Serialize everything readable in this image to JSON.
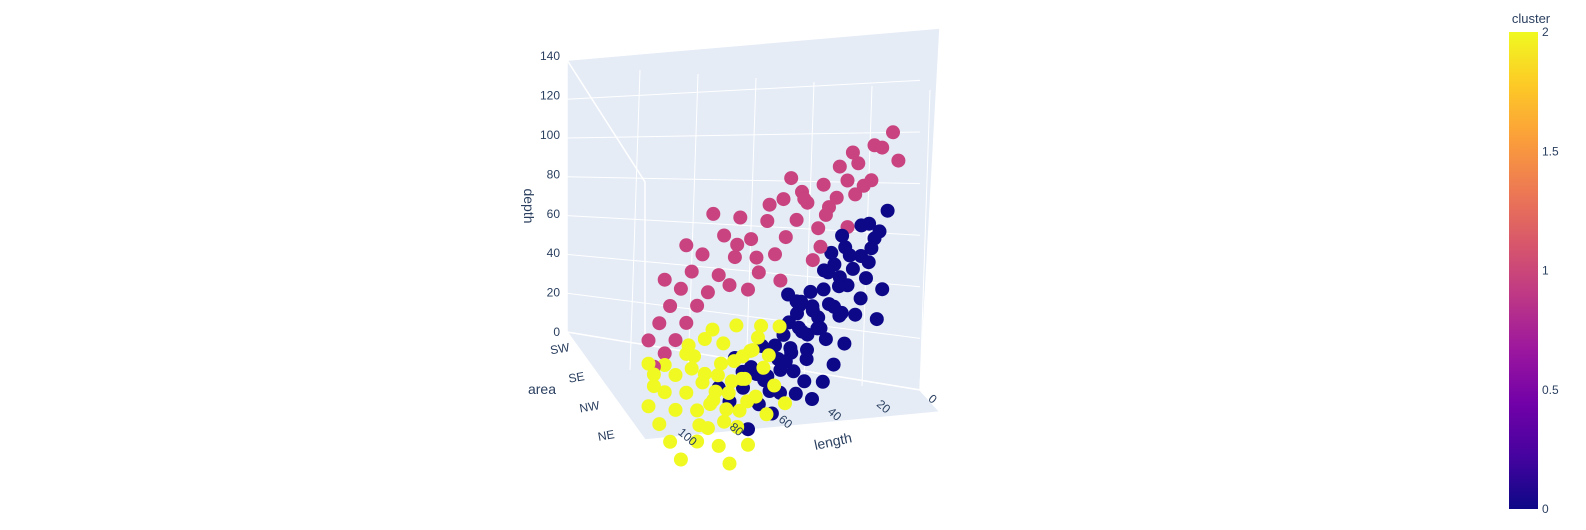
{
  "chart_data": {
    "type": "scatter3d",
    "axes": {
      "x": {
        "title": "length",
        "ticks": [
          0,
          20,
          40,
          60,
          80,
          100
        ],
        "range": [
          0,
          110
        ]
      },
      "y": {
        "title": "area",
        "categories": [
          "SW",
          "SE",
          "NW",
          "NE"
        ]
      },
      "z": {
        "title": "depth",
        "ticks": [
          0,
          20,
          40,
          60,
          80,
          100,
          120,
          140
        ],
        "range": [
          0,
          140
        ]
      }
    },
    "colorbar": {
      "title": "cluster",
      "ticks": [
        "0",
        "0.5",
        "1",
        "1.5",
        "2"
      ],
      "range": [
        0,
        2
      ],
      "colorscale": [
        "#0d0887",
        "#46039f",
        "#7201a8",
        "#9c179e",
        "#bd3786",
        "#d8576b",
        "#ed7953",
        "#fb9f3a",
        "#fdca26",
        "#f0f921"
      ]
    },
    "background_color": "#e5ecf6",
    "series": [
      {
        "cluster": 0,
        "color": "#0d0887",
        "points": [
          [
            12,
            0,
            95
          ],
          [
            15,
            0,
            85
          ],
          [
            18,
            0,
            77
          ],
          [
            20,
            0,
            62
          ],
          [
            24,
            0,
            44
          ],
          [
            28,
            0,
            30
          ],
          [
            32,
            0,
            20
          ],
          [
            36,
            0,
            12
          ],
          [
            40,
            0,
            4
          ],
          [
            14,
            0,
            55
          ],
          [
            22,
            0,
            52
          ],
          [
            30,
            0,
            60
          ],
          [
            26,
            0,
            75
          ],
          [
            34,
            0,
            68
          ],
          [
            38,
            0,
            40
          ],
          [
            42,
            0,
            25
          ],
          [
            16,
            0,
            40
          ],
          [
            44,
            0,
            55
          ],
          [
            46,
            0,
            8
          ],
          [
            48,
            0,
            32
          ],
          [
            19,
            0,
            70
          ],
          [
            29,
            0,
            46
          ],
          [
            20,
            1,
            92
          ],
          [
            25,
            1,
            84
          ],
          [
            30,
            1,
            70
          ],
          [
            35,
            1,
            60
          ],
          [
            40,
            1,
            50
          ],
          [
            45,
            1,
            40
          ],
          [
            50,
            1,
            30
          ],
          [
            55,
            1,
            20
          ],
          [
            22,
            1,
            100
          ],
          [
            28,
            1,
            78
          ],
          [
            33,
            1,
            55
          ],
          [
            38,
            1,
            44
          ],
          [
            43,
            1,
            62
          ],
          [
            48,
            1,
            52
          ],
          [
            36,
            1,
            88
          ],
          [
            52,
            1,
            70
          ],
          [
            58,
            1,
            10
          ],
          [
            32,
            1,
            96
          ],
          [
            46,
            1,
            24
          ],
          [
            28,
            2,
            110
          ],
          [
            34,
            2,
            100
          ],
          [
            38,
            2,
            92
          ],
          [
            42,
            2,
            80
          ],
          [
            46,
            2,
            70
          ],
          [
            50,
            2,
            60
          ],
          [
            54,
            2,
            50
          ],
          [
            58,
            2,
            42
          ],
          [
            62,
            2,
            32
          ],
          [
            66,
            2,
            26
          ],
          [
            70,
            2,
            14
          ],
          [
            44,
            2,
            66
          ],
          [
            40,
            2,
            72
          ],
          [
            48,
            2,
            58
          ],
          [
            36,
            2,
            85
          ],
          [
            56,
            2,
            46
          ],
          [
            64,
            2,
            38
          ],
          [
            60,
            2,
            55
          ],
          [
            52,
            2,
            76
          ],
          [
            72,
            2,
            44
          ],
          [
            45,
            3,
            100
          ],
          [
            50,
            3,
            90
          ],
          [
            55,
            3,
            80
          ],
          [
            60,
            3,
            70
          ],
          [
            65,
            3,
            62
          ],
          [
            70,
            3,
            52
          ],
          [
            75,
            3,
            46
          ],
          [
            80,
            3,
            40
          ],
          [
            58,
            3,
            76
          ],
          [
            62,
            3,
            58
          ],
          [
            68,
            3,
            66
          ],
          [
            72,
            3,
            56
          ],
          [
            66,
            3,
            50
          ],
          [
            78,
            3,
            62
          ],
          [
            84,
            3,
            48
          ],
          [
            54,
            3,
            84
          ]
        ]
      },
      {
        "cluster": 1,
        "color": "#c8437f",
        "points": [
          [
            10,
            0,
            135
          ],
          [
            14,
            0,
            128
          ],
          [
            8,
            0,
            120
          ],
          [
            18,
            0,
            112
          ],
          [
            24,
            0,
            106
          ],
          [
            20,
            1,
            140
          ],
          [
            26,
            1,
            132
          ],
          [
            30,
            1,
            124
          ],
          [
            34,
            1,
            116
          ],
          [
            38,
            1,
            108
          ],
          [
            24,
            1,
            120
          ],
          [
            30,
            1,
            100
          ],
          [
            40,
            1,
            92
          ],
          [
            46,
            1,
            118
          ],
          [
            28,
            1,
            138
          ],
          [
            36,
            2,
            142
          ],
          [
            42,
            2,
            134
          ],
          [
            48,
            2,
            126
          ],
          [
            52,
            2,
            118
          ],
          [
            56,
            2,
            110
          ],
          [
            60,
            2,
            102
          ],
          [
            46,
            2,
            96
          ],
          [
            66,
            2,
            94
          ],
          [
            70,
            2,
            86
          ],
          [
            40,
            2,
            122
          ],
          [
            54,
            2,
            140
          ],
          [
            62,
            2,
            128
          ],
          [
            74,
            2,
            110
          ],
          [
            58,
            2,
            88
          ],
          [
            44,
            2,
            112
          ],
          [
            50,
            2,
            132
          ],
          [
            60,
            3,
            140
          ],
          [
            66,
            3,
            130
          ],
          [
            72,
            3,
            122
          ],
          [
            78,
            3,
            114
          ],
          [
            84,
            3,
            106
          ],
          [
            88,
            3,
            98
          ],
          [
            92,
            3,
            92
          ],
          [
            96,
            3,
            84
          ],
          [
            100,
            3,
            76
          ],
          [
            104,
            3,
            70
          ],
          [
            108,
            3,
            64
          ],
          [
            76,
            3,
            134
          ],
          [
            82,
            3,
            126
          ],
          [
            90,
            3,
            118
          ],
          [
            94,
            3,
            110
          ],
          [
            98,
            3,
            102
          ],
          [
            102,
            3,
            94
          ],
          [
            106,
            3,
            86
          ],
          [
            86,
            3,
            138
          ],
          [
            110,
            3,
            78
          ],
          [
            80,
            3,
            100
          ],
          [
            70,
            3,
            112
          ],
          [
            96,
            3,
            124
          ],
          [
            104,
            3,
            108
          ]
        ]
      },
      {
        "cluster": 2,
        "color": "#f0f921",
        "points": [
          [
            50,
            0,
            4
          ],
          [
            54,
            0,
            14
          ],
          [
            58,
            0,
            24
          ],
          [
            62,
            0,
            34
          ],
          [
            66,
            0,
            20
          ],
          [
            56,
            0,
            30
          ],
          [
            60,
            0,
            40
          ],
          [
            64,
            0,
            8
          ],
          [
            68,
            0,
            48
          ],
          [
            52,
            0,
            44
          ],
          [
            60,
            1,
            10
          ],
          [
            64,
            1,
            20
          ],
          [
            68,
            1,
            30
          ],
          [
            72,
            1,
            40
          ],
          [
            76,
            1,
            50
          ],
          [
            70,
            1,
            14
          ],
          [
            74,
            1,
            24
          ],
          [
            78,
            1,
            34
          ],
          [
            66,
            1,
            44
          ],
          [
            80,
            1,
            58
          ],
          [
            62,
            1,
            56
          ],
          [
            70,
            2,
            6
          ],
          [
            74,
            2,
            16
          ],
          [
            78,
            2,
            26
          ],
          [
            82,
            2,
            36
          ],
          [
            86,
            2,
            46
          ],
          [
            90,
            2,
            56
          ],
          [
            76,
            2,
            40
          ],
          [
            80,
            2,
            50
          ],
          [
            84,
            2,
            30
          ],
          [
            88,
            2,
            20
          ],
          [
            72,
            2,
            52
          ],
          [
            92,
            2,
            62
          ],
          [
            86,
            2,
            64
          ],
          [
            80,
            3,
            8
          ],
          [
            84,
            3,
            18
          ],
          [
            88,
            3,
            28
          ],
          [
            92,
            3,
            38
          ],
          [
            96,
            3,
            48
          ],
          [
            100,
            3,
            58
          ],
          [
            104,
            3,
            64
          ],
          [
            108,
            3,
            54
          ],
          [
            110,
            3,
            44
          ],
          [
            106,
            3,
            34
          ],
          [
            102,
            3,
            24
          ],
          [
            98,
            3,
            14
          ],
          [
            94,
            3,
            60
          ],
          [
            90,
            3,
            52
          ],
          [
            86,
            3,
            42
          ],
          [
            82,
            3,
            30
          ],
          [
            96,
            3,
            68
          ],
          [
            100,
            3,
            40
          ],
          [
            104,
            3,
            50
          ],
          [
            108,
            3,
            60
          ],
          [
            110,
            3,
            66
          ],
          [
            92,
            3,
            22
          ]
        ]
      }
    ]
  }
}
